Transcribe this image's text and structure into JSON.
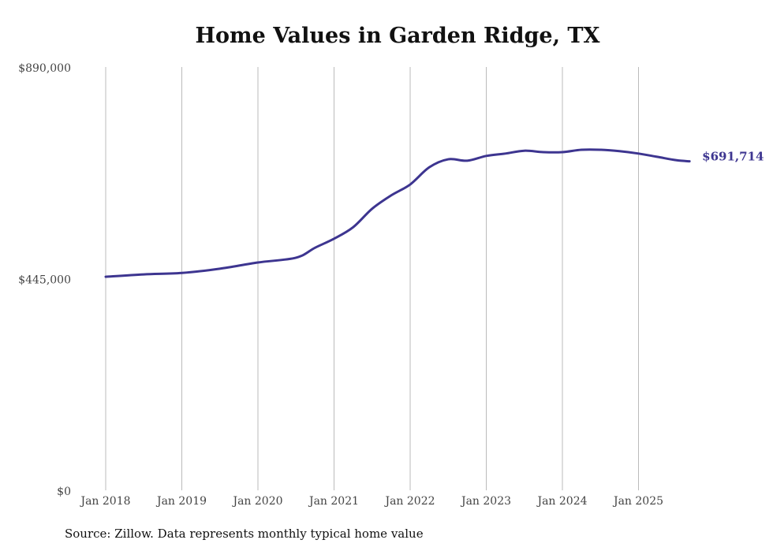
{
  "chart_data": {
    "type": "line",
    "title": "Home Values in Garden Ridge, TX",
    "source": "Source: Zillow. Data represents monthly typical home value",
    "xlabel": "",
    "ylabel": "",
    "ylim": [
      0,
      890000
    ],
    "y_ticks": [
      0,
      445000,
      890000
    ],
    "y_tick_labels": [
      "$0",
      "$445,000",
      "$890,000"
    ],
    "x_ticks": [
      2018,
      2019,
      2020,
      2021,
      2022,
      2023,
      2024,
      2025
    ],
    "x_tick_labels": [
      "Jan 2018",
      "Jan 2019",
      "Jan 2020",
      "Jan 2021",
      "Jan 2022",
      "Jan 2023",
      "Jan 2024",
      "Jan 2025"
    ],
    "grid": "vertical",
    "line_color": "#3d3590",
    "end_label": "$691,714",
    "series": [
      {
        "name": "Typical home value",
        "x": [
          2018.0,
          2018.5,
          2019.0,
          2019.5,
          2020.0,
          2020.5,
          2020.75,
          2021.0,
          2021.25,
          2021.5,
          2021.75,
          2022.0,
          2022.25,
          2022.5,
          2022.75,
          2023.0,
          2023.25,
          2023.5,
          2023.75,
          2024.0,
          2024.25,
          2024.5,
          2024.75,
          2025.0,
          2025.25,
          2025.5,
          2025.67
        ],
        "values": [
          449000,
          454000,
          457000,
          466000,
          479000,
          489000,
          510000,
          529000,
          553000,
          592000,
          620000,
          643000,
          679000,
          696000,
          693000,
          703000,
          708000,
          714000,
          711000,
          711000,
          716000,
          716000,
          713000,
          708000,
          701000,
          694000,
          691714
        ]
      }
    ]
  }
}
